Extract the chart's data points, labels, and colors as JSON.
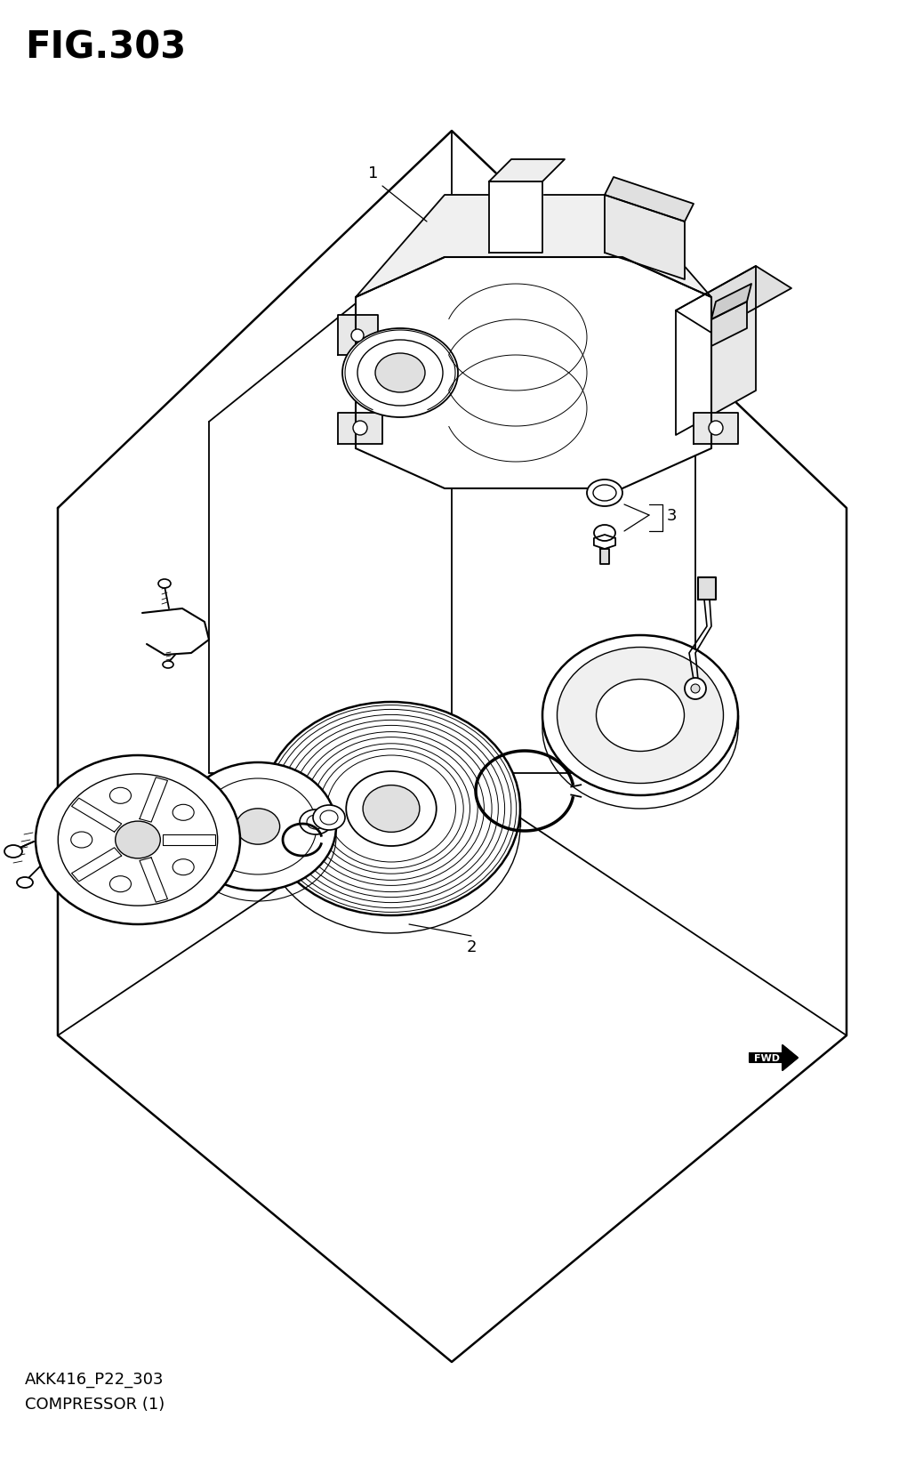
{
  "title": "FIG.303",
  "title_fontsize": 30,
  "title_fontweight": "bold",
  "footer_line1": "AKK416_P22_303",
  "footer_line2": "COMPRESSOR (1)",
  "footer_fontsize": 13,
  "bg_color": "#ffffff",
  "line_color": "#000000",
  "fig_width": 10.12,
  "fig_height": 16.4,
  "dpi": 100
}
